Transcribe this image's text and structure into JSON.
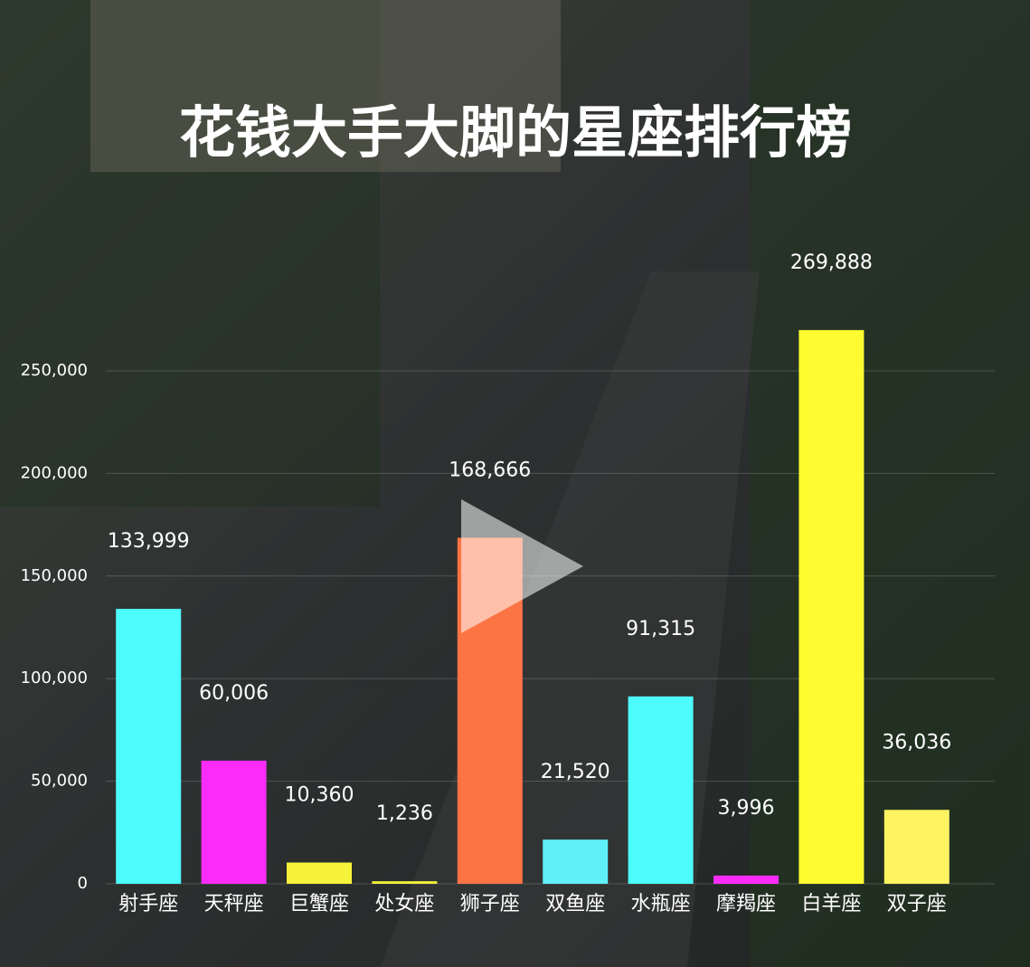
{
  "chart_data": {
    "type": "bar",
    "title": "花钱大手大脚的星座排行榜",
    "categories": [
      "射手座",
      "天秤座",
      "巨蟹座",
      "处女座",
      "狮子座",
      "双鱼座",
      "水瓶座",
      "摩羯座",
      "白羊座",
      "双子座"
    ],
    "values": [
      133999,
      60006,
      10360,
      1236,
      168666,
      21520,
      91315,
      3996,
      269888,
      36036
    ],
    "value_labels": [
      "133,999",
      "60,006",
      "10,360",
      "1,236",
      "168,666",
      "21,520",
      "91,315",
      "3,996",
      "269,888",
      "36,036"
    ],
    "colors": [
      "#4cfbfc",
      "#fb2cfb",
      "#f6f33a",
      "#f6f33a",
      "#fd7444",
      "#5ff0f8",
      "#4cfbfc",
      "#fb2cfb",
      "#fefc30",
      "#fef462"
    ],
    "ylim": [
      0,
      300000
    ],
    "yticks": [
      {
        "value": 0,
        "label": "0"
      },
      {
        "value": 50000,
        "label": "50,000"
      },
      {
        "value": 100000,
        "label": "100,000"
      },
      {
        "value": 150000,
        "label": "150,000"
      },
      {
        "value": 200000,
        "label": "200,000"
      },
      {
        "value": 250000,
        "label": "250,000"
      }
    ],
    "grid": true
  }
}
